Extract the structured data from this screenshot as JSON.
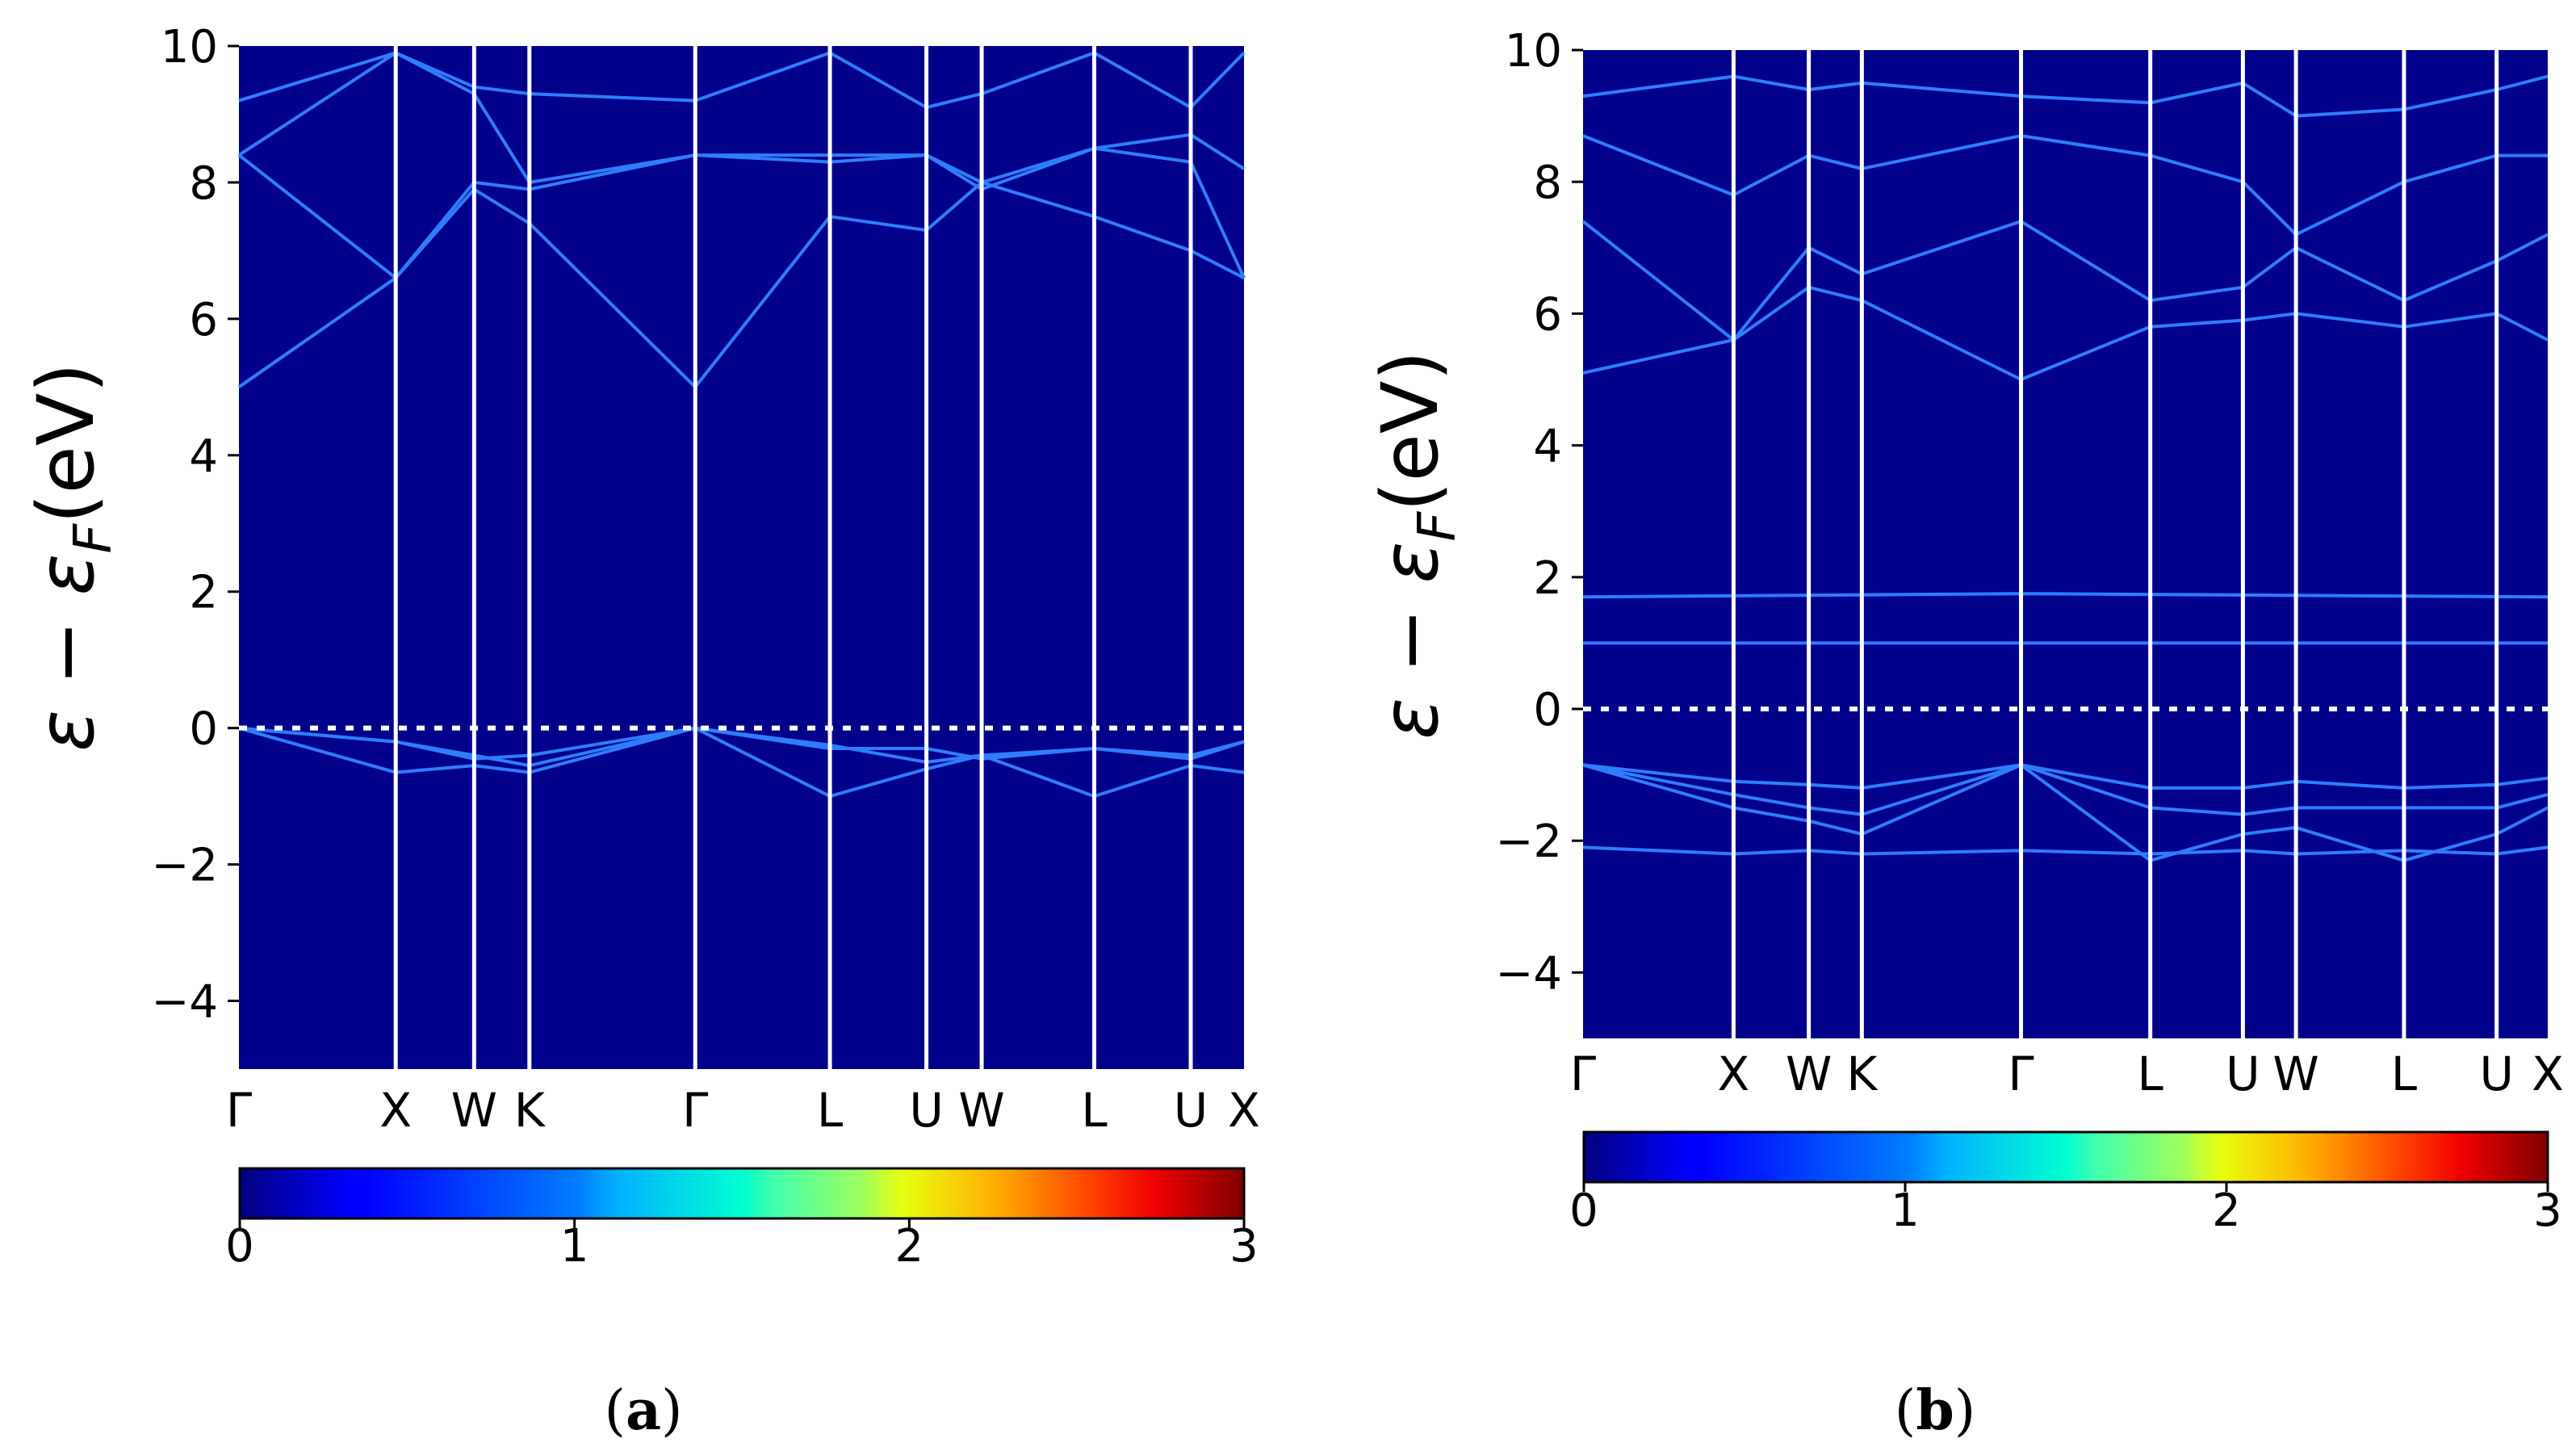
{
  "chart_data": [
    {
      "type": "heatmap",
      "panel": "a",
      "caption": {
        "open": "(",
        "letter": "a",
        "close": ")"
      },
      "ylabel": {
        "main": "ε − ε",
        "sub": "F",
        "unit": "(eV)"
      },
      "ylim": [
        -5,
        10
      ],
      "yticks": [
        10,
        8,
        6,
        4,
        2,
        0,
        -2,
        -4
      ],
      "ytick_labels": [
        "10",
        "8",
        "6",
        "4",
        "2",
        "0",
        "−2",
        "−4"
      ],
      "xlim": [
        0,
        1
      ],
      "high_symmetry_labels": [
        "Γ",
        "X",
        "W",
        "K",
        "Γ",
        "L",
        "U",
        "W",
        "L",
        "U",
        "X"
      ],
      "high_symmetry_positions": [
        0.0,
        0.156,
        0.234,
        0.289,
        0.454,
        0.588,
        0.684,
        0.739,
        0.851,
        0.947,
        1.0
      ],
      "fermi_level": 0,
      "colorbar": {
        "min": 0,
        "max": 3,
        "ticks": [
          0,
          1,
          2,
          3
        ],
        "tick_labels": [
          "0",
          "1",
          "2",
          "3"
        ]
      },
      "bands": [
        {
          "name": "valence-1",
          "points": [
            [
              0,
              0
            ],
            [
              0.156,
              -0.2
            ],
            [
              0.234,
              -0.45
            ],
            [
              0.289,
              -0.4
            ],
            [
              0.454,
              0
            ],
            [
              0.588,
              -0.3
            ],
            [
              0.684,
              -0.3
            ],
            [
              0.739,
              -0.45
            ],
            [
              0.851,
              -0.3
            ],
            [
              0.947,
              -0.45
            ],
            [
              1,
              -0.2
            ]
          ]
        },
        {
          "name": "valence-2",
          "points": [
            [
              0,
              0
            ],
            [
              0.156,
              -0.2
            ],
            [
              0.234,
              -0.4
            ],
            [
              0.289,
              -0.55
            ],
            [
              0.454,
              0
            ],
            [
              0.588,
              -0.25
            ],
            [
              0.684,
              -0.5
            ],
            [
              0.739,
              -0.4
            ],
            [
              0.851,
              -0.3
            ],
            [
              0.947,
              -0.4
            ],
            [
              1,
              -0.2
            ]
          ]
        },
        {
          "name": "valence-3",
          "points": [
            [
              0,
              0
            ],
            [
              0.156,
              -0.65
            ],
            [
              0.234,
              -0.55
            ],
            [
              0.289,
              -0.65
            ],
            [
              0.454,
              0
            ],
            [
              0.588,
              -1.0
            ],
            [
              0.684,
              -0.6
            ],
            [
              0.739,
              -0.4
            ],
            [
              0.851,
              -1.0
            ],
            [
              0.947,
              -0.55
            ],
            [
              1,
              -0.65
            ]
          ]
        },
        {
          "name": "conduction-1",
          "points": [
            [
              0,
              5.0
            ],
            [
              0.156,
              6.6
            ],
            [
              0.234,
              7.9
            ],
            [
              0.289,
              7.4
            ],
            [
              0.454,
              5.0
            ],
            [
              0.588,
              7.5
            ],
            [
              0.684,
              7.3
            ],
            [
              0.739,
              8.0
            ],
            [
              0.851,
              7.5
            ],
            [
              0.947,
              7.0
            ],
            [
              1,
              6.6
            ]
          ]
        },
        {
          "name": "conduction-2",
          "points": [
            [
              0,
              8.4
            ],
            [
              0.156,
              6.6
            ],
            [
              0.234,
              8.0
            ],
            [
              0.289,
              7.9
            ],
            [
              0.454,
              8.4
            ],
            [
              0.588,
              8.3
            ],
            [
              0.684,
              8.4
            ],
            [
              0.739,
              7.9
            ],
            [
              0.851,
              8.5
            ],
            [
              0.947,
              8.3
            ],
            [
              1,
              6.6
            ]
          ]
        },
        {
          "name": "conduction-3",
          "points": [
            [
              0,
              8.4
            ],
            [
              0.156,
              9.9
            ],
            [
              0.234,
              9.3
            ],
            [
              0.289,
              8.0
            ],
            [
              0.454,
              8.4
            ],
            [
              0.588,
              8.4
            ],
            [
              0.684,
              8.4
            ],
            [
              0.739,
              8.0
            ],
            [
              0.851,
              8.5
            ],
            [
              0.947,
              8.7
            ],
            [
              1,
              8.2
            ]
          ]
        },
        {
          "name": "conduction-4",
          "points": [
            [
              0,
              9.2
            ],
            [
              0.156,
              9.9
            ],
            [
              0.234,
              9.4
            ],
            [
              0.289,
              9.3
            ],
            [
              0.454,
              9.2
            ],
            [
              0.588,
              9.9
            ],
            [
              0.684,
              9.1
            ],
            [
              0.739,
              9.3
            ],
            [
              0.851,
              9.9
            ],
            [
              0.947,
              9.1
            ],
            [
              1,
              9.9
            ]
          ]
        }
      ]
    },
    {
      "type": "heatmap",
      "panel": "b",
      "caption": {
        "open": "(",
        "letter": "b",
        "close": ")"
      },
      "ylabel": {
        "main": "ε − ε",
        "sub": "F",
        "unit": "(eV)"
      },
      "ylim": [
        -5,
        10
      ],
      "yticks": [
        10,
        8,
        6,
        4,
        2,
        0,
        -2,
        -4
      ],
      "ytick_labels": [
        "10",
        "8",
        "6",
        "4",
        "2",
        "0",
        "−2",
        "−4"
      ],
      "xlim": [
        0,
        1
      ],
      "high_symmetry_labels": [
        "Γ",
        "X",
        "W",
        "K",
        "Γ",
        "L",
        "U",
        "W",
        "L",
        "U",
        "X"
      ],
      "high_symmetry_positions": [
        0.0,
        0.156,
        0.234,
        0.289,
        0.454,
        0.588,
        0.684,
        0.739,
        0.851,
        0.947,
        1.0
      ],
      "fermi_level": 0,
      "colorbar": {
        "min": 0,
        "max": 3,
        "ticks": [
          0,
          1,
          2,
          3
        ],
        "tick_labels": [
          "0",
          "1",
          "2",
          "3"
        ]
      },
      "bands": [
        {
          "name": "valence-1",
          "points": [
            [
              0,
              -0.85
            ],
            [
              0.156,
              -1.1
            ],
            [
              0.234,
              -1.15
            ],
            [
              0.289,
              -1.2
            ],
            [
              0.454,
              -0.85
            ],
            [
              0.588,
              -1.2
            ],
            [
              0.684,
              -1.2
            ],
            [
              0.739,
              -1.1
            ],
            [
              0.851,
              -1.2
            ],
            [
              0.947,
              -1.15
            ],
            [
              1,
              -1.05
            ]
          ]
        },
        {
          "name": "valence-2",
          "points": [
            [
              0,
              -0.85
            ],
            [
              0.156,
              -1.3
            ],
            [
              0.234,
              -1.5
            ],
            [
              0.289,
              -1.6
            ],
            [
              0.454,
              -0.85
            ],
            [
              0.588,
              -1.5
            ],
            [
              0.684,
              -1.6
            ],
            [
              0.739,
              -1.5
            ],
            [
              0.851,
              -1.5
            ],
            [
              0.947,
              -1.5
            ],
            [
              1,
              -1.3
            ]
          ]
        },
        {
          "name": "valence-3",
          "points": [
            [
              0,
              -0.85
            ],
            [
              0.156,
              -1.5
            ],
            [
              0.234,
              -1.7
            ],
            [
              0.289,
              -1.9
            ],
            [
              0.454,
              -0.85
            ],
            [
              0.588,
              -2.3
            ],
            [
              0.684,
              -1.9
            ],
            [
              0.739,
              -1.8
            ],
            [
              0.851,
              -2.3
            ],
            [
              0.947,
              -1.9
            ],
            [
              1,
              -1.5
            ]
          ]
        },
        {
          "name": "valence-4",
          "points": [
            [
              0,
              -2.1
            ],
            [
              0.156,
              -2.2
            ],
            [
              0.234,
              -2.15
            ],
            [
              0.289,
              -2.2
            ],
            [
              0.454,
              -2.15
            ],
            [
              0.588,
              -2.2
            ],
            [
              0.684,
              -2.15
            ],
            [
              0.739,
              -2.2
            ],
            [
              0.851,
              -2.15
            ],
            [
              0.947,
              -2.2
            ],
            [
              1,
              -2.1
            ]
          ]
        },
        {
          "name": "flat-1",
          "points": [
            [
              0,
              1.0
            ],
            [
              0.454,
              1.0
            ],
            [
              1,
              1.0
            ]
          ]
        },
        {
          "name": "flat-2",
          "points": [
            [
              0,
              1.7
            ],
            [
              0.454,
              1.75
            ],
            [
              1,
              1.7
            ]
          ]
        },
        {
          "name": "conduction-1",
          "points": [
            [
              0,
              5.1
            ],
            [
              0.156,
              5.6
            ],
            [
              0.234,
              6.4
            ],
            [
              0.289,
              6.2
            ],
            [
              0.454,
              5.0
            ],
            [
              0.588,
              5.8
            ],
            [
              0.684,
              5.9
            ],
            [
              0.739,
              6.0
            ],
            [
              0.851,
              5.8
            ],
            [
              0.947,
              6.0
            ],
            [
              1,
              5.6
            ]
          ]
        },
        {
          "name": "conduction-2",
          "points": [
            [
              0,
              7.4
            ],
            [
              0.156,
              5.6
            ],
            [
              0.234,
              7.0
            ],
            [
              0.289,
              6.6
            ],
            [
              0.454,
              7.4
            ],
            [
              0.588,
              6.2
            ],
            [
              0.684,
              6.4
            ],
            [
              0.739,
              7.0
            ],
            [
              0.851,
              6.2
            ],
            [
              0.947,
              6.8
            ],
            [
              1,
              7.2
            ]
          ]
        },
        {
          "name": "conduction-3",
          "points": [
            [
              0,
              8.7
            ],
            [
              0.156,
              7.8
            ],
            [
              0.234,
              8.4
            ],
            [
              0.289,
              8.2
            ],
            [
              0.454,
              8.7
            ],
            [
              0.588,
              8.4
            ],
            [
              0.684,
              8.0
            ],
            [
              0.739,
              7.2
            ],
            [
              0.851,
              8.0
            ],
            [
              0.947,
              8.4
            ],
            [
              1,
              8.4
            ]
          ]
        },
        {
          "name": "conduction-4",
          "points": [
            [
              0,
              9.3
            ],
            [
              0.156,
              9.6
            ],
            [
              0.234,
              9.4
            ],
            [
              0.289,
              9.5
            ],
            [
              0.454,
              9.3
            ],
            [
              0.588,
              9.2
            ],
            [
              0.684,
              9.5
            ],
            [
              0.739,
              9.0
            ],
            [
              0.851,
              9.1
            ],
            [
              0.947,
              9.4
            ],
            [
              1,
              9.6
            ]
          ]
        }
      ]
    }
  ]
}
